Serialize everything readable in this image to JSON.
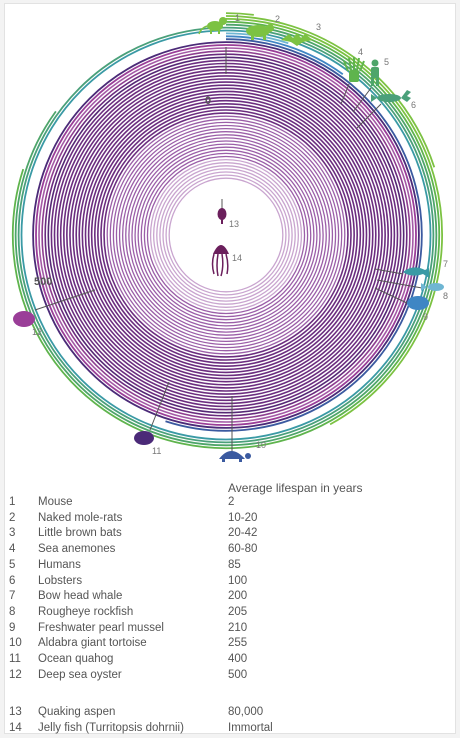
{
  "scale": {
    "start_label": "0",
    "mid_label": "500"
  },
  "header": {
    "lifespan_title": "Average lifespan in years"
  },
  "organisms": [
    {
      "n": "1",
      "name": "Mouse",
      "lifespan": "2",
      "years": 2,
      "color": "#7cc242"
    },
    {
      "n": "2",
      "name": "Naked mole-rats",
      "lifespan": "10-20",
      "years": 20,
      "color": "#7cc242"
    },
    {
      "n": "3",
      "name": "Little brown bats",
      "lifespan": "20-42",
      "years": 42,
      "color": "#7cc242"
    },
    {
      "n": "4",
      "name": "Sea anemones",
      "lifespan": "60-80",
      "years": 80,
      "color": "#5fb44d"
    },
    {
      "n": "5",
      "name": "Humans",
      "lifespan": "85",
      "years": 85,
      "color": "#4ea56a"
    },
    {
      "n": "6",
      "name": "Lobsters",
      "lifespan": "100",
      "years": 100,
      "color": "#4aa07a"
    },
    {
      "n": "7",
      "name": "Bow head whale",
      "lifespan": "200",
      "years": 200,
      "color": "#3a9aa5"
    },
    {
      "n": "8",
      "name": "Rougheye rockfish",
      "lifespan": "205",
      "years": 205,
      "color": "#6fb6d3"
    },
    {
      "n": "9",
      "name": "Freshwater pearl mussel",
      "lifespan": "210",
      "years": 210,
      "color": "#3f86c4"
    },
    {
      "n": "10",
      "name": "Aldabra giant tortoise",
      "lifespan": "255",
      "years": 255,
      "color": "#3b5aa0"
    },
    {
      "n": "11",
      "name": "Ocean quahog",
      "lifespan": "400",
      "years": 400,
      "color": "#4b2a78"
    },
    {
      "n": "12",
      "name": "Deep sea oyster",
      "lifespan": "500",
      "years": 500,
      "color": "#9a3e98"
    },
    {
      "n": "13",
      "name": "Quaking aspen",
      "lifespan": "80,000",
      "years": null,
      "color": "#6b1f5c"
    },
    {
      "n": "14",
      "name": "Jelly fish (Turritopsis dohrnii)",
      "lifespan": "Immortal",
      "years": null,
      "color": "#6b1f5c"
    }
  ]
}
